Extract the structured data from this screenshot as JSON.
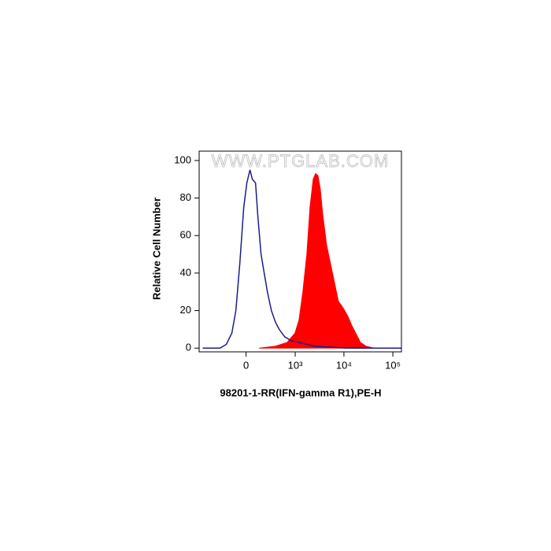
{
  "chart_data": {
    "type": "histogram-overlay",
    "watermark": "WWW.PTGLAB.COM",
    "x_label": "98201-1-RR(IFN-gamma R1),PE-H",
    "y_label": "Relative Cell Number",
    "xscale": "biexponential",
    "xlim": [
      -900,
      150000
    ],
    "xticks": [
      0,
      {
        "value": 1000,
        "label": "10³"
      },
      {
        "value": 10000,
        "label": "10⁴"
      },
      {
        "value": 100000,
        "label": "10⁵"
      }
    ],
    "ylim": [
      -2,
      105
    ],
    "yticks": [
      0,
      20,
      40,
      60,
      80,
      100
    ],
    "series": [
      {
        "style": "area",
        "color": "#ff0000",
        "x": [
          135,
          370,
          676,
          990,
          1200,
          1440,
          1740,
          2020,
          2350,
          2620,
          2940,
          3280,
          3660,
          4420,
          5320,
          6400,
          7700,
          9280,
          10380,
          12000,
          14500,
          17400,
          21800,
          28300,
          41000,
          150000
        ],
        "values": [
          0,
          1,
          3,
          8,
          15,
          30,
          50,
          75,
          90,
          93,
          92,
          85,
          72,
          55,
          45,
          35,
          25,
          22,
          20,
          17,
          12,
          8,
          3,
          1,
          0,
          0
        ]
      },
      {
        "style": "line",
        "color": "#1c1c8c",
        "x": [
          -758,
          -311,
          -214,
          -144,
          -100,
          -60,
          -22,
          7,
          37,
          60,
          92,
          117,
          153,
          192,
          236,
          299,
          370,
          454,
          600,
          820,
          1200,
          1740,
          2530,
          5320,
          11200,
          150000
        ],
        "values": [
          0,
          0,
          2,
          8,
          20,
          45,
          75,
          88,
          95,
          90,
          88,
          70,
          50,
          40,
          30,
          20,
          14,
          10,
          6,
          4,
          3,
          2,
          1,
          0.5,
          0,
          0
        ]
      }
    ]
  }
}
